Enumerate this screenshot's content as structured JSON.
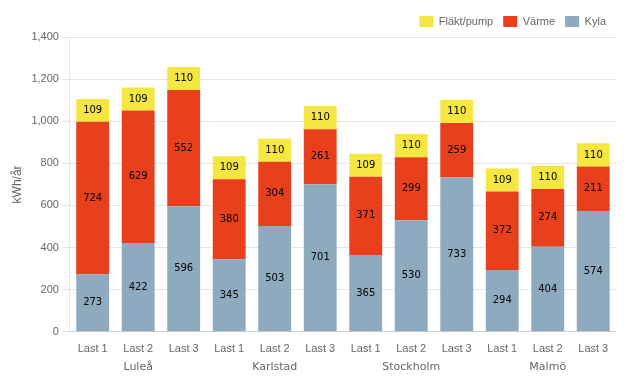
{
  "chart_data": {
    "type": "bar",
    "stacked": true,
    "ylabel": "kWh/år",
    "categories": [
      "Last 1",
      "Last 2",
      "Last 3",
      "Last 1",
      "Last 2",
      "Last 3",
      "Last 1",
      "Last 2",
      "Last 3",
      "Last 1",
      "Last 2",
      "Last 3"
    ],
    "groups": [
      "Luleå",
      "Karlstad",
      "Stockholm",
      "Malmö"
    ],
    "series": [
      {
        "name": "Kyla",
        "color": "#8eaabf",
        "values": [
          273,
          422,
          596,
          345,
          503,
          701,
          365,
          530,
          733,
          294,
          404,
          574
        ]
      },
      {
        "name": "Värme",
        "color": "#e8401c",
        "values": [
          724,
          629,
          552,
          380,
          304,
          261,
          371,
          299,
          259,
          372,
          274,
          211
        ]
      },
      {
        "name": "Fläkt/pump",
        "color": "#f5e642",
        "values": [
          109,
          109,
          110,
          109,
          110,
          110,
          109,
          110,
          110,
          109,
          110,
          110
        ]
      }
    ],
    "ylim": [
      0,
      1400
    ],
    "yticks": [
      0,
      200,
      400,
      600,
      800,
      1000,
      1200,
      1400
    ],
    "grid": true,
    "legend": "upper right",
    "data_labels": true
  }
}
